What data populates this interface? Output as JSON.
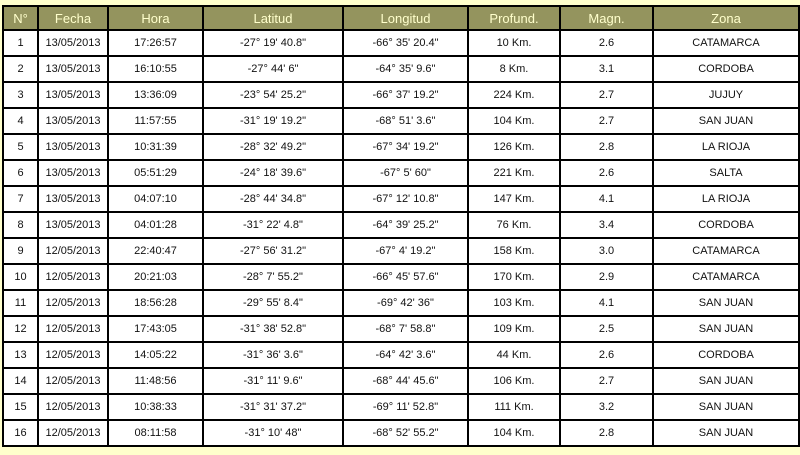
{
  "colors": {
    "page_background": "#ffffcc",
    "header_background": "#94945e",
    "header_text": "#ffffcc",
    "cell_background": "#ffffff",
    "cell_text": "#111111",
    "border": "#000000"
  },
  "table": {
    "column_keys": [
      "num",
      "fecha",
      "hora",
      "latitud",
      "longitud",
      "profundidad",
      "magnitud",
      "zona"
    ],
    "columns": [
      "N°",
      "Fecha",
      "Hora",
      "Latitud",
      "Longitud",
      "Profund.",
      "Magn.",
      "Zona"
    ],
    "rows": [
      [
        "1",
        "13/05/2013",
        "17:26:57",
        "-27° 19' 40.8\"",
        "-66° 35' 20.4\"",
        "10 Km.",
        "2.6",
        "CATAMARCA"
      ],
      [
        "2",
        "13/05/2013",
        "16:10:55",
        "-27° 44' 6\"",
        "-64° 35' 9.6\"",
        "8 Km.",
        "3.1",
        "CORDOBA"
      ],
      [
        "3",
        "13/05/2013",
        "13:36:09",
        "-23° 54' 25.2\"",
        "-66° 37' 19.2\"",
        "224 Km.",
        "2.7",
        "JUJUY"
      ],
      [
        "4",
        "13/05/2013",
        "11:57:55",
        "-31° 19' 19.2\"",
        "-68° 51' 3.6\"",
        "104 Km.",
        "2.7",
        "SAN JUAN"
      ],
      [
        "5",
        "13/05/2013",
        "10:31:39",
        "-28° 32' 49.2\"",
        "-67° 34' 19.2\"",
        "126 Km.",
        "2.8",
        "LA RIOJA"
      ],
      [
        "6",
        "13/05/2013",
        "05:51:29",
        "-24° 18' 39.6\"",
        "-67° 5' 60\"",
        "221 Km.",
        "2.6",
        "SALTA"
      ],
      [
        "7",
        "13/05/2013",
        "04:07:10",
        "-28° 44' 34.8\"",
        "-67° 12' 10.8\"",
        "147 Km.",
        "4.1",
        "LA RIOJA"
      ],
      [
        "8",
        "13/05/2013",
        "04:01:28",
        "-31° 22' 4.8\"",
        "-64° 39' 25.2\"",
        "76 Km.",
        "3.4",
        "CORDOBA"
      ],
      [
        "9",
        "12/05/2013",
        "22:40:47",
        "-27° 56' 31.2\"",
        "-67° 4' 19.2\"",
        "158 Km.",
        "3.0",
        "CATAMARCA"
      ],
      [
        "10",
        "12/05/2013",
        "20:21:03",
        "-28° 7' 55.2\"",
        "-66° 45' 57.6\"",
        "170 Km.",
        "2.9",
        "CATAMARCA"
      ],
      [
        "11",
        "12/05/2013",
        "18:56:28",
        "-29° 55' 8.4\"",
        "-69° 42' 36\"",
        "103 Km.",
        "4.1",
        "SAN JUAN"
      ],
      [
        "12",
        "12/05/2013",
        "17:43:05",
        "-31° 38' 52.8\"",
        "-68° 7' 58.8\"",
        "109 Km.",
        "2.5",
        "SAN JUAN"
      ],
      [
        "13",
        "12/05/2013",
        "14:05:22",
        "-31° 36' 3.6\"",
        "-64° 42' 3.6\"",
        "44 Km.",
        "2.6",
        "CORDOBA"
      ],
      [
        "14",
        "12/05/2013",
        "11:48:56",
        "-31° 11' 9.6\"",
        "-68° 44' 45.6\"",
        "106 Km.",
        "2.7",
        "SAN JUAN"
      ],
      [
        "15",
        "12/05/2013",
        "10:38:33",
        "-31° 31' 37.2\"",
        "-69° 11' 52.8\"",
        "111 Km.",
        "3.2",
        "SAN JUAN"
      ],
      [
        "16",
        "12/05/2013",
        "08:11:58",
        "-31° 10' 48\"",
        "-68° 52' 55.2\"",
        "104 Km.",
        "2.8",
        "SAN JUAN"
      ]
    ]
  }
}
